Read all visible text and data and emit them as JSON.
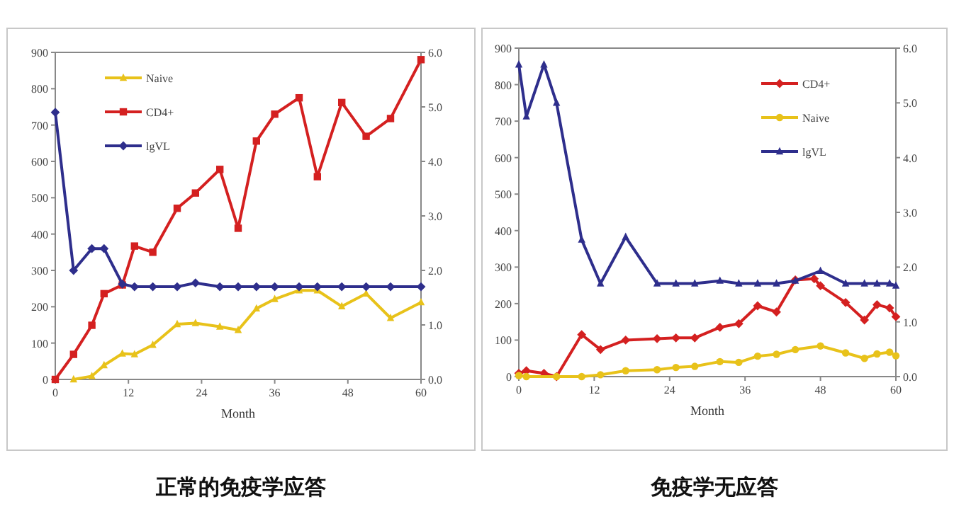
{
  "chart_data": [
    {
      "type": "line",
      "title": "正常的免疫学应答",
      "xlabel": "Month",
      "xlim": [
        0,
        60
      ],
      "xticks": [
        0,
        12,
        24,
        36,
        48,
        60
      ],
      "ylim": [
        0,
        900
      ],
      "yticks": [
        0,
        100,
        200,
        300,
        400,
        500,
        600,
        700,
        800,
        900
      ],
      "y2lim": [
        0,
        6
      ],
      "y2ticks": [
        {
          "value": 0,
          "label": "0.0"
        },
        {
          "value": 1,
          "label": "1.0"
        },
        {
          "value": 2,
          "label": "2.0"
        },
        {
          "value": 3,
          "label": "3.0"
        },
        {
          "value": 4,
          "label": "4.0"
        },
        {
          "value": 5,
          "label": "5.0"
        },
        {
          "value": 6,
          "label": "6.0"
        }
      ],
      "grid": false,
      "legend": "top left",
      "series": [
        {
          "name": "Naive",
          "color": "#e8c21a",
          "marker": "triangle",
          "x": [
            3,
            6,
            8,
            11,
            13,
            16,
            20,
            23,
            27,
            30,
            33,
            36,
            40,
            43,
            47,
            51,
            55,
            60
          ],
          "values": [
            0,
            9,
            39,
            71,
            69,
            95,
            152,
            155,
            145,
            136,
            195,
            221,
            245,
            245,
            201,
            236,
            169,
            212
          ]
        },
        {
          "name": "CD4+",
          "color": "#d42020",
          "marker": "square",
          "x": [
            0,
            3,
            6,
            8,
            11,
            13,
            16,
            20,
            23,
            27,
            30,
            33,
            36,
            40,
            43,
            47,
            51,
            55,
            60
          ],
          "values": [
            0,
            69,
            149,
            236,
            260,
            367,
            350,
            471,
            513,
            578,
            416,
            656,
            730,
            775,
            558,
            762,
            669,
            718,
            880
          ]
        },
        {
          "name": "lgVL",
          "color": "#2e2e8c",
          "marker": "diamond",
          "axis": "y2",
          "x": [
            0,
            3,
            6,
            8,
            11,
            13,
            16,
            20,
            23,
            27,
            30,
            33,
            36,
            40,
            43,
            47,
            51,
            55,
            60
          ],
          "values": [
            4.9,
            2.0,
            2.4,
            2.4,
            1.75,
            1.7,
            1.7,
            1.7,
            1.77,
            1.7,
            1.7,
            1.7,
            1.7,
            1.7,
            1.7,
            1.7,
            1.7,
            1.7,
            1.7
          ]
        }
      ]
    },
    {
      "type": "line",
      "title": "免疫学无应答",
      "xlabel": "Month",
      "xlim": [
        0,
        60
      ],
      "xticks": [
        0,
        12,
        24,
        36,
        48,
        60
      ],
      "ylim": [
        0,
        900
      ],
      "yticks": [
        0,
        100,
        200,
        300,
        400,
        500,
        600,
        700,
        800,
        900
      ],
      "y2lim": [
        0,
        6
      ],
      "y2ticks": [
        {
          "value": 0,
          "label": "0.0"
        },
        {
          "value": 1,
          "label": "1.0"
        },
        {
          "value": 2,
          "label": "2.0"
        },
        {
          "value": 3,
          "label": "3.0"
        },
        {
          "value": 4,
          "label": "4.0"
        },
        {
          "value": 5,
          "label": "5.0"
        },
        {
          "value": 6,
          "label": "6.0"
        }
      ],
      "grid": false,
      "legend": "top right",
      "series": [
        {
          "name": "CD4+",
          "color": "#d42020",
          "marker": "diamond",
          "x": [
            0,
            1.2,
            4,
            6,
            10,
            13,
            17,
            22,
            25,
            28,
            32,
            35,
            38,
            41,
            44,
            47,
            48,
            52,
            55,
            57,
            59,
            60
          ],
          "values": [
            9,
            16,
            9,
            0,
            115,
            74,
            100,
            104,
            106,
            106,
            135,
            145,
            194,
            177,
            265,
            268,
            249,
            203,
            155,
            197,
            188,
            164
          ]
        },
        {
          "name": "Naive",
          "color": "#e8c21a",
          "marker": "circle",
          "x": [
            0,
            1.2,
            6,
            10,
            13,
            17,
            22,
            25,
            28,
            32,
            35,
            38,
            41,
            44,
            48,
            52,
            55,
            57,
            59,
            60
          ],
          "values": [
            3,
            0,
            0,
            0,
            5,
            16,
            19,
            25,
            28,
            41,
            39,
            56,
            61,
            74,
            84,
            65,
            50,
            62,
            67,
            57
          ]
        },
        {
          "name": "lgVL",
          "color": "#2e2e8c",
          "marker": "triangle",
          "axis": "y2",
          "x": [
            0,
            1.2,
            4,
            6,
            10,
            13,
            17,
            22,
            25,
            28,
            32,
            35,
            38,
            41,
            44,
            48,
            52,
            55,
            57,
            59,
            60
          ],
          "values": [
            5.7,
            4.75,
            5.7,
            5.0,
            2.5,
            1.7,
            2.55,
            1.7,
            1.7,
            1.7,
            1.75,
            1.7,
            1.7,
            1.7,
            1.75,
            1.93,
            1.7,
            1.7,
            1.7,
            1.7,
            1.66
          ]
        }
      ]
    }
  ]
}
